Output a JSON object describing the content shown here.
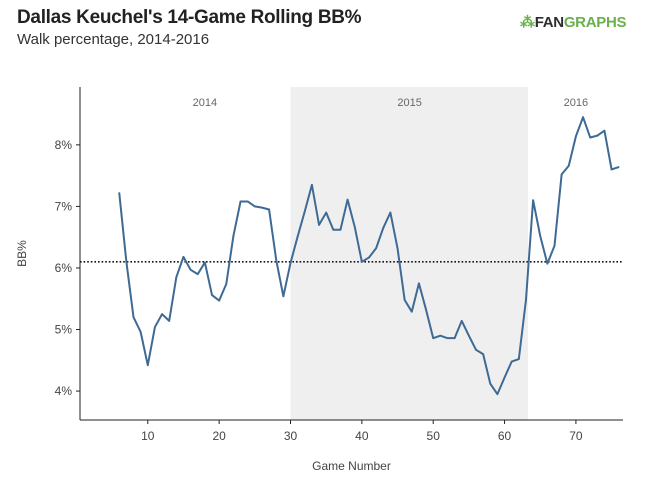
{
  "header": {
    "title": "Dallas Keuchel's 14-Game Rolling BB%",
    "subtitle": "Walk percentage, 2014-2016",
    "logo_a": "FAN",
    "logo_b": "GRAPHS"
  },
  "chart_data": {
    "type": "line",
    "title": "Dallas Keuchel's 14-Game Rolling BB%",
    "subtitle": "Walk percentage, 2014-2016",
    "xlabel": "Game Number",
    "ylabel": "BB%",
    "xlim": [
      0.5,
      76.6
    ],
    "ylim": [
      3.53,
      8.94
    ],
    "xticks": [
      10,
      20,
      30,
      40,
      50,
      60,
      70
    ],
    "yticks": [
      4,
      5,
      6,
      7,
      8
    ],
    "ytick_labels": [
      "4%",
      "5%",
      "6%",
      "7%",
      "8%"
    ],
    "reference_line": 6.1,
    "shaded_region": {
      "x": [
        30,
        63.3
      ],
      "label": "2015"
    },
    "season_labels": [
      {
        "label": "2014",
        "x": 18
      },
      {
        "label": "2015",
        "x": 46.7
      },
      {
        "label": "2016",
        "x": 70
      }
    ],
    "color": "#3e6a94",
    "shade_color": "#efefef",
    "x": [
      6,
      7,
      8,
      9,
      10,
      11,
      12,
      13,
      14,
      15,
      16,
      17,
      18,
      19,
      20,
      21,
      22,
      23,
      24,
      25,
      26,
      27,
      28,
      29,
      30,
      31,
      32,
      33,
      34,
      35,
      36,
      37,
      38,
      39,
      40,
      41,
      42,
      43,
      44,
      45,
      46,
      47,
      48,
      49,
      50,
      51,
      52,
      53,
      54,
      55,
      56,
      57,
      58,
      59,
      60,
      61,
      62,
      63,
      64,
      65,
      66,
      67,
      68,
      69,
      70,
      71,
      72,
      73,
      74,
      75,
      76
    ],
    "values": [
      7.22,
      6.1,
      5.2,
      4.96,
      4.42,
      5.04,
      5.25,
      5.14,
      5.85,
      6.18,
      5.97,
      5.9,
      6.09,
      5.56,
      5.47,
      5.74,
      6.52,
      7.08,
      7.08,
      7.0,
      6.98,
      6.95,
      6.13,
      5.54,
      6.08,
      6.51,
      6.92,
      7.35,
      6.7,
      6.9,
      6.62,
      6.62,
      7.11,
      6.67,
      6.1,
      6.17,
      6.32,
      6.65,
      6.9,
      6.32,
      5.48,
      5.29,
      5.75,
      5.32,
      4.86,
      4.9,
      4.86,
      4.86,
      5.14,
      4.9,
      4.67,
      4.6,
      4.12,
      3.95,
      4.22,
      4.48,
      4.52,
      5.48,
      7.1,
      6.52,
      6.07,
      6.36,
      7.52,
      7.66,
      8.14,
      8.45,
      8.12,
      8.15,
      8.23,
      7.6,
      7.64
    ]
  }
}
